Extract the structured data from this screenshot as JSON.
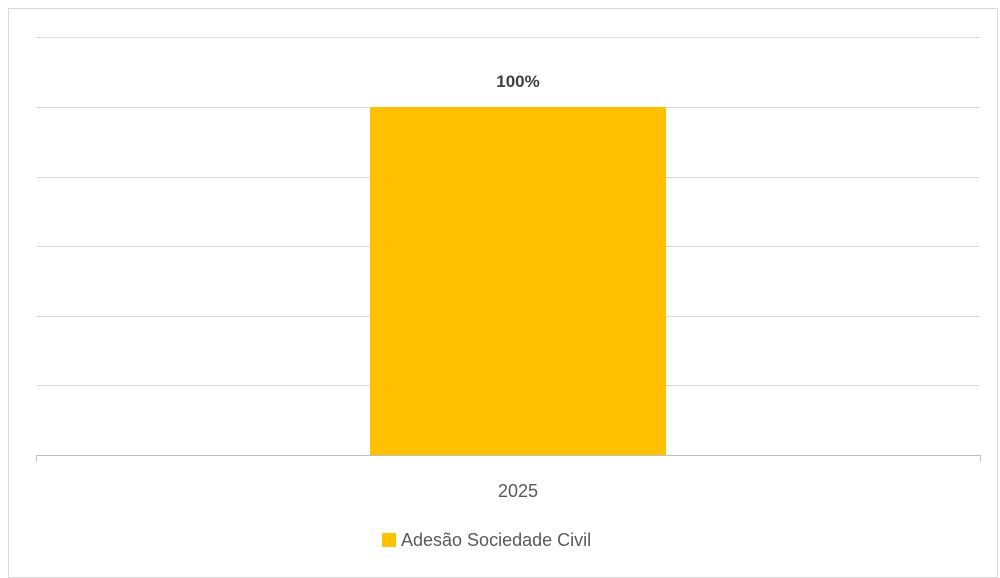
{
  "chart_data": {
    "type": "bar",
    "categories": [
      "2025"
    ],
    "series": [
      {
        "name": "Adesão Sociedade Civil",
        "values": [
          1.0
        ]
      }
    ],
    "data_labels": [
      "100%"
    ],
    "ylim": [
      0,
      1.2
    ],
    "grid": true,
    "legend_position": "bottom",
    "colors": {
      "bar": "#FFC000",
      "grid": "#d9d9d9",
      "axis": "#bfbfbf",
      "text": "#595959",
      "label": "#404040"
    }
  }
}
